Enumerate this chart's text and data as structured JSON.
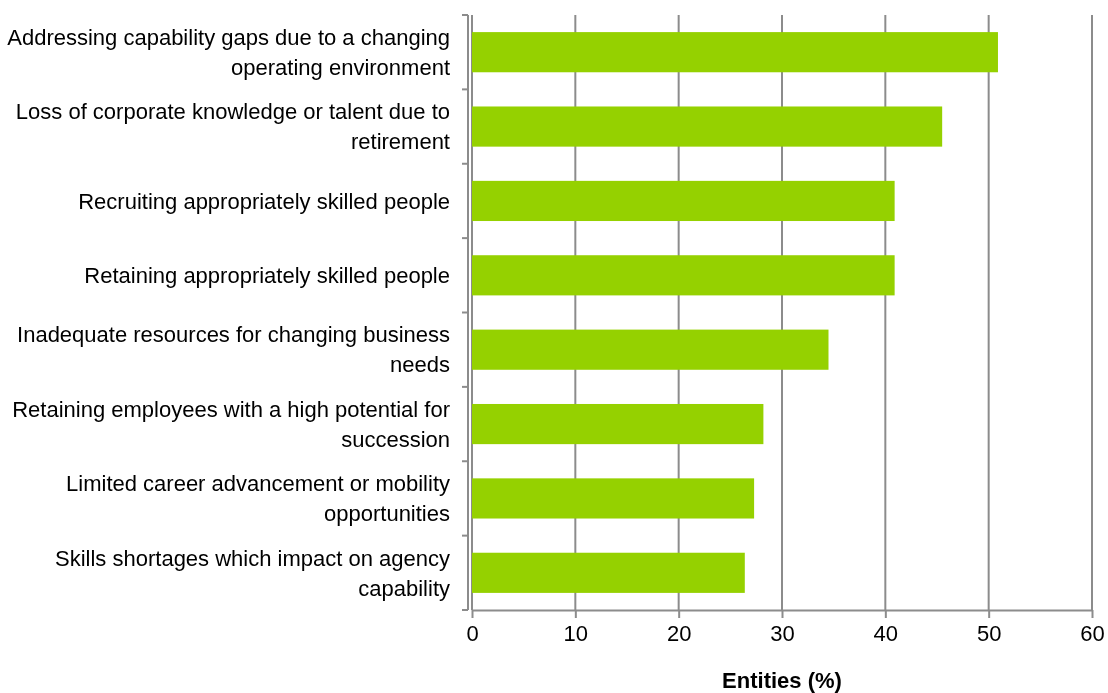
{
  "chart_data": {
    "type": "bar",
    "orientation": "horizontal",
    "categories": [
      "Addressing capability gaps due to a changing operating environment",
      "Loss of corporate knowledge or talent due to retirement",
      "Recruiting appropriately skilled people",
      "Retaining appropriately skilled people",
      "Inadequate resources for changing business needs",
      "Retaining employees with a high potential for succession",
      "Limited career advancement or mobility opportunities",
      "Skills shortages which impact on agency capability"
    ],
    "values": [
      50.9,
      45.5,
      40.9,
      40.9,
      34.5,
      28.2,
      27.3,
      26.4
    ],
    "color": "#95d100",
    "xlim": [
      0,
      60
    ],
    "xticks": [
      0,
      10,
      20,
      30,
      40,
      50,
      60
    ],
    "xlabel": "Entities (%)",
    "grid": "x"
  }
}
